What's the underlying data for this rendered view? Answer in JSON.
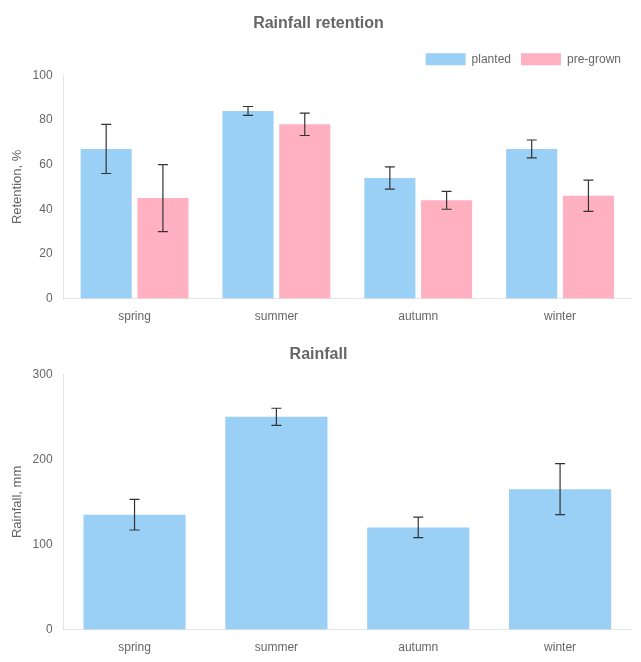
{
  "chart_data": [
    {
      "type": "bar",
      "title": "Rainfall retention",
      "ylabel": "Retention, %",
      "categories": [
        "spring",
        "summer",
        "autumn",
        "winter"
      ],
      "series": [
        {
          "name": "planted",
          "values": [
            67,
            84,
            54,
            67
          ],
          "errors": [
            11,
            2,
            5,
            4
          ]
        },
        {
          "name": "pre-grown",
          "values": [
            45,
            78,
            44,
            46
          ],
          "errors": [
            15,
            5,
            4,
            7
          ]
        }
      ],
      "ylim": [
        0,
        100
      ],
      "yticks": [
        0,
        20,
        40,
        60,
        80,
        100
      ],
      "grid": false,
      "legend": "upper right"
    },
    {
      "type": "bar",
      "title": "Rainfall",
      "ylabel": "Rainfall, mm",
      "categories": [
        "spring",
        "summer",
        "autumn",
        "winter"
      ],
      "values": [
        135,
        250,
        120,
        165
      ],
      "errors": [
        18,
        10,
        12,
        30
      ],
      "ylim": [
        0,
        300
      ],
      "yticks": [
        0,
        100,
        200,
        300
      ],
      "grid": false
    }
  ]
}
